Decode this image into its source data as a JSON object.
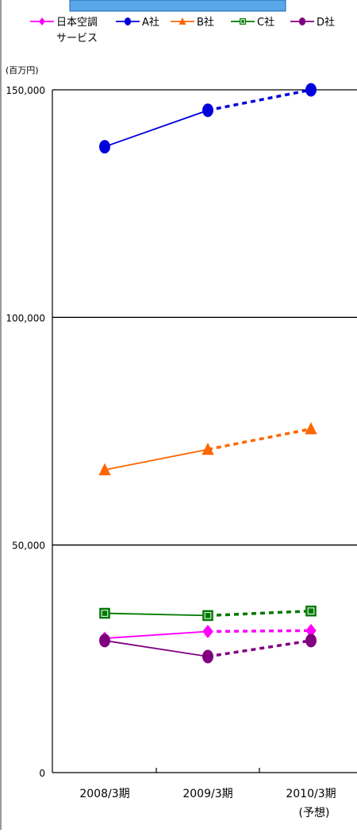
{
  "chart_data": {
    "type": "line",
    "unit_label": "(百万円)",
    "categories": [
      "2008/3期",
      "2009/3期",
      "2010/3期"
    ],
    "category_sublabels": [
      "",
      "",
      "(予想)"
    ],
    "forecast_from_index": 1,
    "ylim": [
      0,
      150000
    ],
    "y_ticks": [
      0,
      50000,
      100000,
      150000
    ],
    "y_tick_labels": [
      "0",
      "50,000",
      "100,000",
      "150,000"
    ],
    "grid": true,
    "legend_position": "top",
    "series": [
      {
        "name": "日本空調\nサービス",
        "color": "#ff00ff",
        "marker": "diamond",
        "values": [
          29500,
          31000,
          31200
        ]
      },
      {
        "name": "A社",
        "color": "#0000dd",
        "marker": "circle",
        "values": [
          137500,
          145500,
          150000
        ]
      },
      {
        "name": "B社",
        "color": "#ff6600",
        "marker": "triangle",
        "values": [
          66500,
          71000,
          75500
        ]
      },
      {
        "name": "C社",
        "color": "#007a00",
        "marker": "square",
        "values": [
          35000,
          34500,
          35500
        ]
      },
      {
        "name": "D社",
        "color": "#800080",
        "marker": "circle",
        "values": [
          29000,
          25500,
          29000
        ]
      }
    ]
  }
}
